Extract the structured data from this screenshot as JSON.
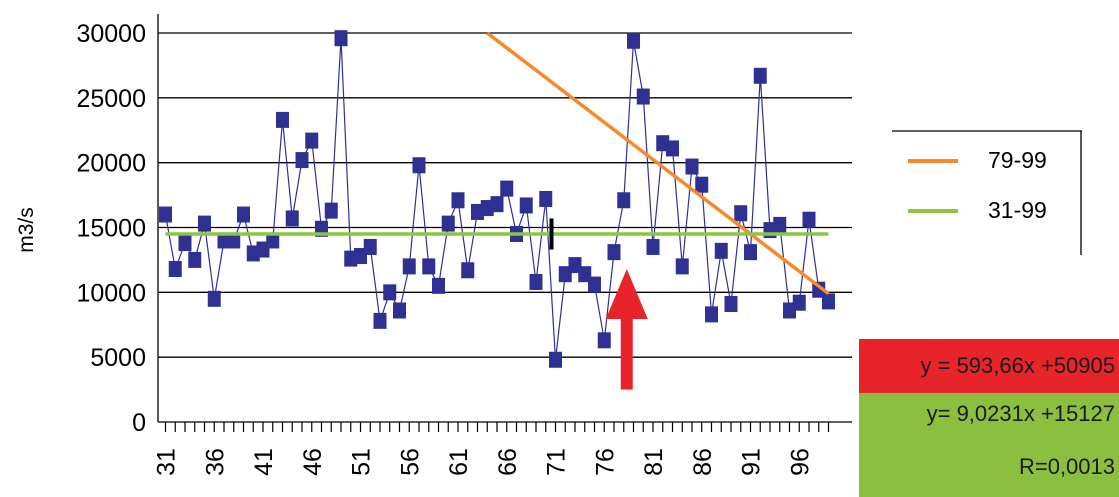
{
  "chart_data": {
    "type": "line",
    "title": "",
    "ylabel": "m3/s",
    "xlabel": "",
    "ylim": [
      0,
      30000
    ],
    "yticks": [
      0,
      5000,
      10000,
      15000,
      20000,
      25000,
      30000
    ],
    "xticks": [
      "31",
      "36",
      "41",
      "46",
      "51",
      "56",
      "61",
      "66",
      "71",
      "76",
      "81",
      "86",
      "91",
      "96"
    ],
    "grid": "horizontal",
    "series": [
      {
        "values": [
          {
            "x": 31,
            "y": 16000
          },
          {
            "x": 32,
            "y": 11800
          },
          {
            "x": 33,
            "y": 13800
          },
          {
            "x": 34,
            "y": 12500
          },
          {
            "x": 35,
            "y": 15300
          },
          {
            "x": 36,
            "y": 9500
          },
          {
            "x": 37,
            "y": 14000
          },
          {
            "x": 38,
            "y": 14000
          },
          {
            "x": 39,
            "y": 16000
          },
          {
            "x": 40,
            "y": 13000
          },
          {
            "x": 41,
            "y": 13300
          },
          {
            "x": 42,
            "y": 14000
          },
          {
            "x": 43,
            "y": 23300
          },
          {
            "x": 44,
            "y": 15700
          },
          {
            "x": 45,
            "y": 20200
          },
          {
            "x": 46,
            "y": 21700
          },
          {
            "x": 47,
            "y": 14900
          },
          {
            "x": 48,
            "y": 16300
          },
          {
            "x": 49,
            "y": 29600
          },
          {
            "x": 50,
            "y": 12600
          },
          {
            "x": 51,
            "y": 12800
          },
          {
            "x": 52,
            "y": 13500
          },
          {
            "x": 53,
            "y": 7800
          },
          {
            "x": 54,
            "y": 10000
          },
          {
            "x": 55,
            "y": 8600
          },
          {
            "x": 56,
            "y": 12000
          },
          {
            "x": 57,
            "y": 19800
          },
          {
            "x": 58,
            "y": 12000
          },
          {
            "x": 59,
            "y": 10500
          },
          {
            "x": 60,
            "y": 15300
          },
          {
            "x": 61,
            "y": 17100
          },
          {
            "x": 62,
            "y": 11700
          },
          {
            "x": 63,
            "y": 16200
          },
          {
            "x": 64,
            "y": 16500
          },
          {
            "x": 65,
            "y": 16800
          },
          {
            "x": 66,
            "y": 18000
          },
          {
            "x": 67,
            "y": 14500
          },
          {
            "x": 68,
            "y": 16700
          },
          {
            "x": 69,
            "y": 10800
          },
          {
            "x": 70,
            "y": 17200
          },
          {
            "x": 71,
            "y": 4800
          },
          {
            "x": 72,
            "y": 11400
          },
          {
            "x": 73,
            "y": 12100
          },
          {
            "x": 74,
            "y": 11400
          },
          {
            "x": 75,
            "y": 10600
          },
          {
            "x": 76,
            "y": 6300
          },
          {
            "x": 77,
            "y": 13100
          },
          {
            "x": 78,
            "y": 17100
          },
          {
            "x": 79,
            "y": 29400
          },
          {
            "x": 80,
            "y": 25100
          },
          {
            "x": 81,
            "y": 13500
          },
          {
            "x": 82,
            "y": 21500
          },
          {
            "x": 83,
            "y": 21100
          },
          {
            "x": 84,
            "y": 12000
          },
          {
            "x": 85,
            "y": 19700
          },
          {
            "x": 86,
            "y": 18300
          },
          {
            "x": 87,
            "y": 8300
          },
          {
            "x": 88,
            "y": 13200
          },
          {
            "x": 89,
            "y": 9100
          },
          {
            "x": 90,
            "y": 16100
          },
          {
            "x": 91,
            "y": 13100
          },
          {
            "x": 92,
            "y": 26700
          },
          {
            "x": 93,
            "y": 14800
          },
          {
            "x": 94,
            "y": 15200
          },
          {
            "x": 95,
            "y": 8600
          },
          {
            "x": 96,
            "y": 9200
          },
          {
            "x": 97,
            "y": 15600
          },
          {
            "x": 98,
            "y": 10200
          },
          {
            "x": 99,
            "y": 9300
          }
        ],
        "color": "#2e3192",
        "marker": "square"
      },
      {
        "name": "79-99",
        "type": "trendline",
        "x": [
          64,
          99
        ],
        "y": [
          30000,
          9900
        ],
        "color": "#f7892a"
      },
      {
        "name": "31-99",
        "type": "trendline",
        "x": [
          31,
          99
        ],
        "y": [
          14500,
          14500
        ],
        "color": "#8cc63f"
      }
    ],
    "legend": {
      "position": "right",
      "entries": [
        {
          "label": "79-99",
          "color": "#f7892a"
        },
        {
          "label": "31-99",
          "color": "#8cc63f"
        }
      ]
    },
    "annotations": [
      {
        "kind": "arrow",
        "x": 78,
        "y_from": 2500,
        "y_to": 11800,
        "color": "#e8242b",
        "direction": "up"
      },
      {
        "kind": "tick-marker",
        "x": 71,
        "y_from": 13300,
        "y_to": 15700,
        "color": "#000000"
      }
    ],
    "equations": {
      "red": "y = 593,66x +50905",
      "green_line1": "y= 9,0231x +15127",
      "green_line2": "R=0,0013",
      "red_color": "#e8242b",
      "green_color": "#8cbf3f"
    }
  }
}
